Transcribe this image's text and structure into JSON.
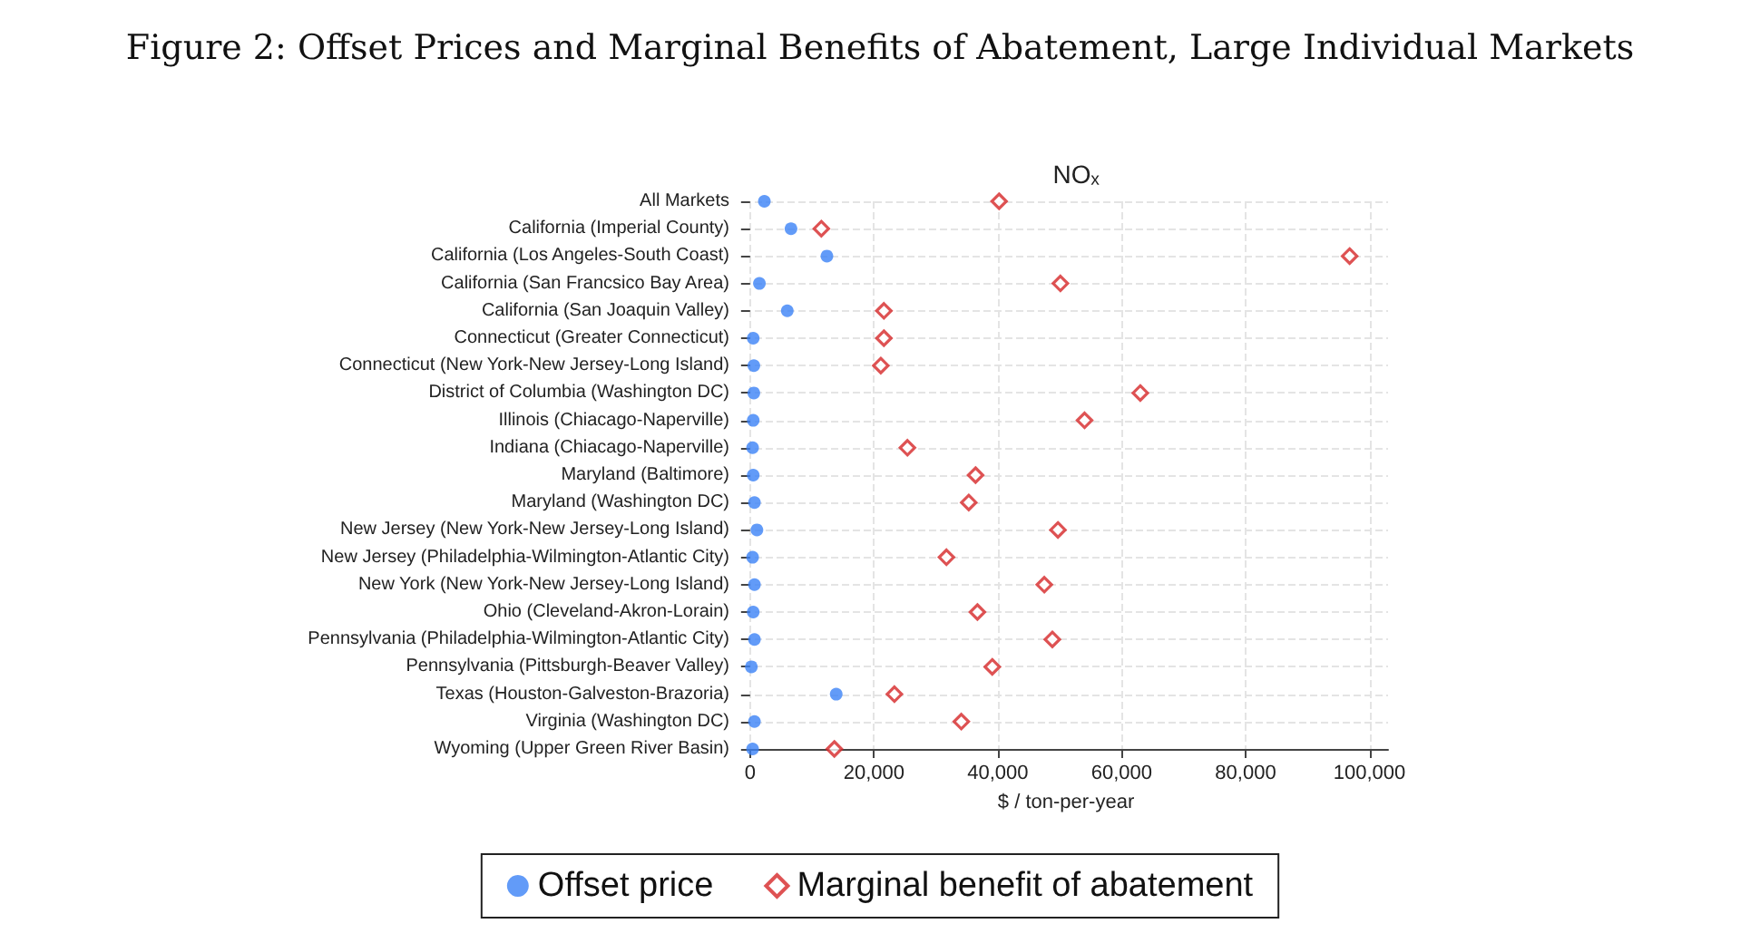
{
  "chart_data": {
    "type": "scatter",
    "title": "Figure 2: Offset Prices and Marginal Benefits of Abatement, Large Individual Markets",
    "subtitle": "NOₓ",
    "xlabel": "$ / ton-per-year",
    "orientation": "horizontal",
    "categories": [
      "All Markets",
      "California (Imperial County)",
      "California (Los Angeles-South Coast)",
      "California (San Francsico Bay Area)",
      "California (San Joaquin Valley)",
      "Connecticut (Greater Connecticut)",
      "Connecticut (New York-New Jersey-Long Island)",
      "District of Columbia (Washington DC)",
      "Illinois (Chiacago-Naperville)",
      "Indiana (Chiacago-Naperville)",
      "Maryland (Baltimore)",
      "Maryland (Washington DC)",
      "New Jersey (New York-New Jersey-Long Island)",
      "New Jersey (Philadelphia-Wilmington-Atlantic City)",
      "New York (New York-New Jersey-Long Island)",
      "Ohio (Cleveland-Akron-Lorain)",
      "Pennsylvania (Philadelphia-Wilmington-Atlantic City)",
      "Pennsylvania (Pittsburgh-Beaver Valley)",
      "Texas (Houston-Galveston-Brazoria)",
      "Virginia (Washington DC)",
      "Wyoming (Upper Green River Basin)"
    ],
    "series": [
      {
        "name": "Offset price",
        "color": "#3b82f6",
        "marker": "circle",
        "values": [
          2300,
          6600,
          12400,
          1500,
          6000,
          500,
          600,
          600,
          500,
          400,
          500,
          700,
          1100,
          400,
          700,
          500,
          700,
          200,
          13900,
          700,
          400
        ]
      },
      {
        "name": "Marginal benefit of abatement",
        "color": "#d62728",
        "marker": "diamond",
        "values": [
          40200,
          11500,
          96800,
          50100,
          21600,
          21600,
          21100,
          63000,
          54000,
          25400,
          36400,
          35300,
          49700,
          31700,
          47500,
          36700,
          48800,
          39100,
          23300,
          34100,
          13600
        ]
      }
    ],
    "xlim": [
      -1000,
      103000
    ],
    "xticks": [
      {
        "value": 0,
        "label": "0"
      },
      {
        "value": 20000,
        "label": "20,000"
      },
      {
        "value": 40000,
        "label": "40,000"
      },
      {
        "value": 60000,
        "label": "60,000"
      },
      {
        "value": 80000,
        "label": "80,000"
      },
      {
        "value": 100000,
        "label": "100,000"
      }
    ],
    "grid": true,
    "legend": "bottom"
  }
}
